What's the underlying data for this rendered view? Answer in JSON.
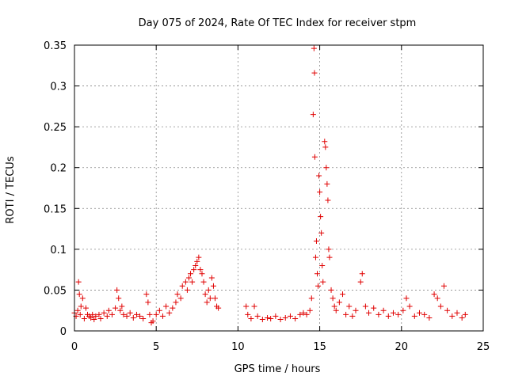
{
  "chart_data": {
    "type": "scatter",
    "title": "Day 075 of 2024, Rate Of TEC Index for receiver stpm",
    "xlabel": "GPS time / hours",
    "ylabel": "ROTI / TECUs",
    "xlim": [
      0,
      25
    ],
    "ylim": [
      0,
      0.35
    ],
    "x_ticks": [
      0,
      5,
      10,
      15,
      20,
      25
    ],
    "x_tick_labels": [
      "0",
      "5",
      "10",
      "15",
      "20",
      "25"
    ],
    "y_ticks": [
      0,
      0.05,
      0.1,
      0.15,
      0.2,
      0.25,
      0.3,
      0.35
    ],
    "y_tick_labels": [
      "0",
      "0.05",
      "0.1",
      "0.15",
      "0.2",
      "0.25",
      "0.3",
      "0.35"
    ],
    "grid": true,
    "marker": "+",
    "color": "#e00000",
    "series": [
      {
        "name": "ROTI",
        "points": [
          [
            0.0,
            0.022
          ],
          [
            0.1,
            0.018
          ],
          [
            0.2,
            0.025
          ],
          [
            0.25,
            0.06
          ],
          [
            0.3,
            0.045
          ],
          [
            0.35,
            0.02
          ],
          [
            0.4,
            0.03
          ],
          [
            0.5,
            0.04
          ],
          [
            0.6,
            0.015
          ],
          [
            0.7,
            0.028
          ],
          [
            0.8,
            0.02
          ],
          [
            0.9,
            0.018
          ],
          [
            1.0,
            0.016
          ],
          [
            1.1,
            0.02
          ],
          [
            1.2,
            0.014
          ],
          [
            1.3,
            0.018
          ],
          [
            1.5,
            0.02
          ],
          [
            1.6,
            0.015
          ],
          [
            1.8,
            0.022
          ],
          [
            2.0,
            0.018
          ],
          [
            2.1,
            0.025
          ],
          [
            2.3,
            0.02
          ],
          [
            2.5,
            0.028
          ],
          [
            2.6,
            0.05
          ],
          [
            2.7,
            0.04
          ],
          [
            2.8,
            0.025
          ],
          [
            2.9,
            0.03
          ],
          [
            3.0,
            0.02
          ],
          [
            3.2,
            0.018
          ],
          [
            3.4,
            0.022
          ],
          [
            3.6,
            0.016
          ],
          [
            3.8,
            0.02
          ],
          [
            4.0,
            0.018
          ],
          [
            4.2,
            0.015
          ],
          [
            4.4,
            0.045
          ],
          [
            4.5,
            0.035
          ],
          [
            4.6,
            0.02
          ],
          [
            4.7,
            0.01
          ],
          [
            4.8,
            0.012
          ],
          [
            5.0,
            0.02
          ],
          [
            5.2,
            0.025
          ],
          [
            5.4,
            0.018
          ],
          [
            5.6,
            0.03
          ],
          [
            5.8,
            0.022
          ],
          [
            6.0,
            0.028
          ],
          [
            6.2,
            0.035
          ],
          [
            6.3,
            0.045
          ],
          [
            6.5,
            0.04
          ],
          [
            6.6,
            0.055
          ],
          [
            6.8,
            0.06
          ],
          [
            6.9,
            0.05
          ],
          [
            7.0,
            0.065
          ],
          [
            7.1,
            0.07
          ],
          [
            7.2,
            0.06
          ],
          [
            7.3,
            0.075
          ],
          [
            7.4,
            0.08
          ],
          [
            7.5,
            0.085
          ],
          [
            7.6,
            0.09
          ],
          [
            7.7,
            0.075
          ],
          [
            7.8,
            0.07
          ],
          [
            7.9,
            0.06
          ],
          [
            8.0,
            0.045
          ],
          [
            8.1,
            0.035
          ],
          [
            8.2,
            0.05
          ],
          [
            8.3,
            0.04
          ],
          [
            8.4,
            0.065
          ],
          [
            8.5,
            0.055
          ],
          [
            8.6,
            0.04
          ],
          [
            8.7,
            0.03
          ],
          [
            8.8,
            0.028
          ],
          [
            10.5,
            0.03
          ],
          [
            10.6,
            0.02
          ],
          [
            10.8,
            0.015
          ],
          [
            11.0,
            0.03
          ],
          [
            11.2,
            0.018
          ],
          [
            11.5,
            0.014
          ],
          [
            11.8,
            0.016
          ],
          [
            12.0,
            0.015
          ],
          [
            12.3,
            0.018
          ],
          [
            12.6,
            0.014
          ],
          [
            12.9,
            0.016
          ],
          [
            13.2,
            0.018
          ],
          [
            13.5,
            0.015
          ],
          [
            13.8,
            0.02
          ],
          [
            14.0,
            0.022
          ],
          [
            14.2,
            0.02
          ],
          [
            14.4,
            0.025
          ],
          [
            14.5,
            0.04
          ],
          [
            14.6,
            0.265
          ],
          [
            14.65,
            0.346
          ],
          [
            14.68,
            0.316
          ],
          [
            14.7,
            0.213
          ],
          [
            14.75,
            0.09
          ],
          [
            14.8,
            0.11
          ],
          [
            14.85,
            0.07
          ],
          [
            14.9,
            0.055
          ],
          [
            14.95,
            0.19
          ],
          [
            15.0,
            0.17
          ],
          [
            15.05,
            0.14
          ],
          [
            15.1,
            0.12
          ],
          [
            15.15,
            0.08
          ],
          [
            15.2,
            0.06
          ],
          [
            15.3,
            0.232
          ],
          [
            15.35,
            0.225
          ],
          [
            15.4,
            0.2
          ],
          [
            15.45,
            0.18
          ],
          [
            15.5,
            0.16
          ],
          [
            15.55,
            0.1
          ],
          [
            15.6,
            0.09
          ],
          [
            15.7,
            0.05
          ],
          [
            15.8,
            0.04
          ],
          [
            15.9,
            0.03
          ],
          [
            16.0,
            0.025
          ],
          [
            16.2,
            0.035
          ],
          [
            16.4,
            0.045
          ],
          [
            16.6,
            0.02
          ],
          [
            16.8,
            0.03
          ],
          [
            17.0,
            0.018
          ],
          [
            17.2,
            0.025
          ],
          [
            17.5,
            0.06
          ],
          [
            17.6,
            0.07
          ],
          [
            17.8,
            0.03
          ],
          [
            18.0,
            0.022
          ],
          [
            18.3,
            0.028
          ],
          [
            18.6,
            0.02
          ],
          [
            18.9,
            0.025
          ],
          [
            19.2,
            0.018
          ],
          [
            19.5,
            0.022
          ],
          [
            19.8,
            0.02
          ],
          [
            20.1,
            0.025
          ],
          [
            20.3,
            0.04
          ],
          [
            20.5,
            0.03
          ],
          [
            20.8,
            0.018
          ],
          [
            21.1,
            0.022
          ],
          [
            21.4,
            0.02
          ],
          [
            21.7,
            0.016
          ],
          [
            22.0,
            0.045
          ],
          [
            22.2,
            0.04
          ],
          [
            22.4,
            0.03
          ],
          [
            22.6,
            0.055
          ],
          [
            22.8,
            0.025
          ],
          [
            23.1,
            0.018
          ],
          [
            23.4,
            0.022
          ],
          [
            23.7,
            0.016
          ],
          [
            23.9,
            0.02
          ]
        ]
      }
    ]
  }
}
